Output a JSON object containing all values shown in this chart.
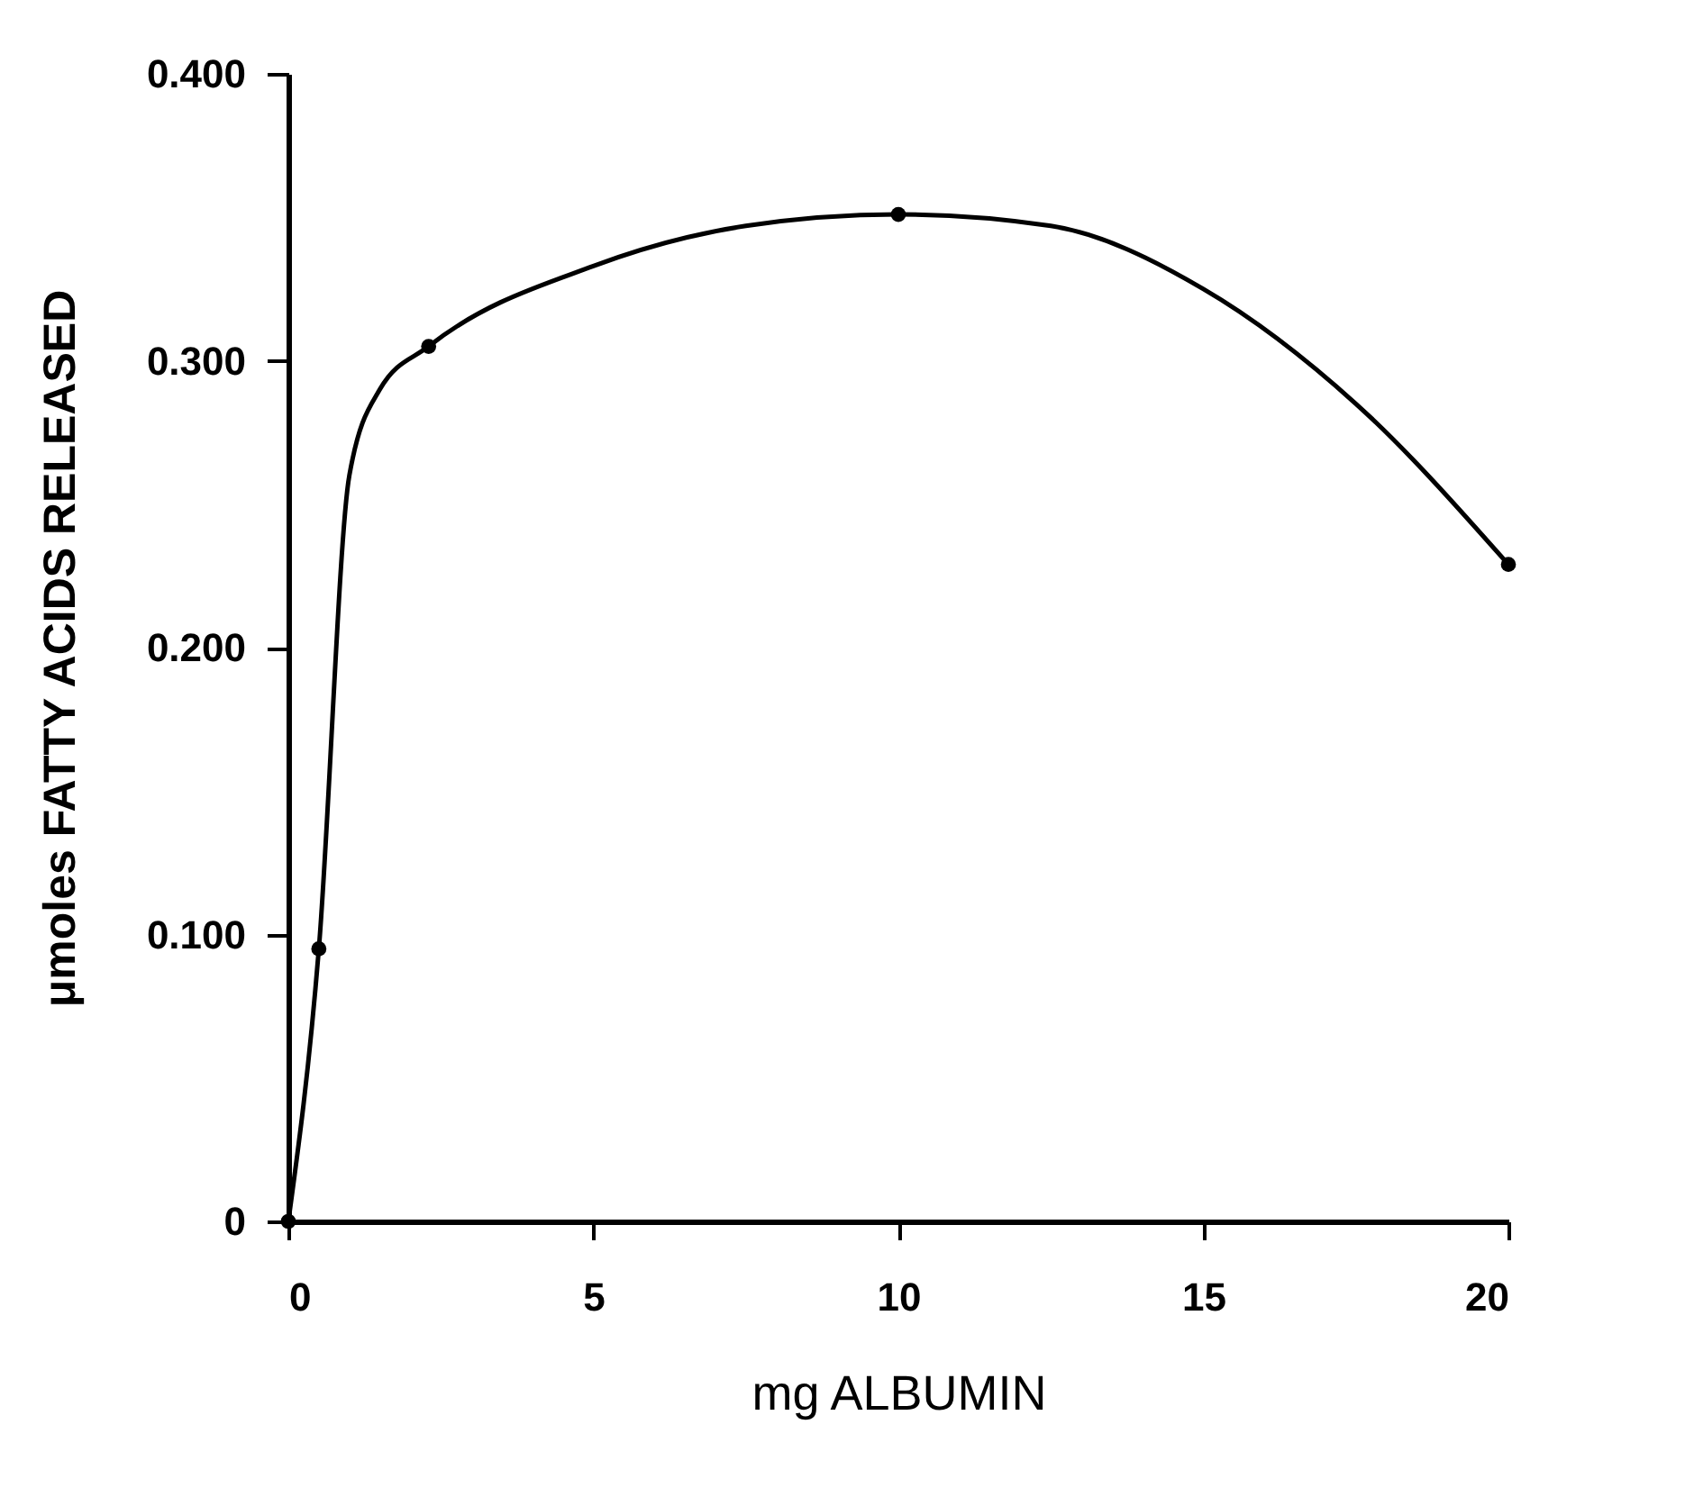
{
  "chart_data": {
    "type": "line",
    "xlabel": "mg ALBUMIN",
    "ylabel": "μmoles FATTY ACIDS RELEASED",
    "xlim": [
      0,
      20
    ],
    "xticks": [
      0,
      5,
      10,
      15,
      20
    ],
    "ylim": [
      0,
      0.4
    ],
    "yticks": [
      0,
      {
        "value": 0.1,
        "label": "0.100"
      },
      {
        "value": 0.2,
        "label": "0.200"
      },
      {
        "value": 0.3,
        "label": "0.300"
      },
      {
        "value": 0.4,
        "label": "0.400"
      }
    ],
    "grid": false,
    "series": [
      {
        "color": "#000000",
        "marker": "none",
        "x": [
          0,
          0.5,
          1,
          1.5,
          2.3,
          5,
          7.5,
          10,
          12.5,
          15,
          17.5,
          20
        ],
        "values": [
          0,
          0.095,
          0.26,
          0.29,
          0.305,
          0.333,
          0.347,
          0.351,
          0.347,
          0.325,
          0.285,
          0.229
        ]
      },
      {
        "type": "scatter",
        "color": "#000000",
        "marker": "circle",
        "x": [
          0,
          0.5,
          2.3,
          10,
          20
        ],
        "values": [
          0,
          0.095,
          0.305,
          0.351,
          0.229
        ]
      }
    ]
  }
}
